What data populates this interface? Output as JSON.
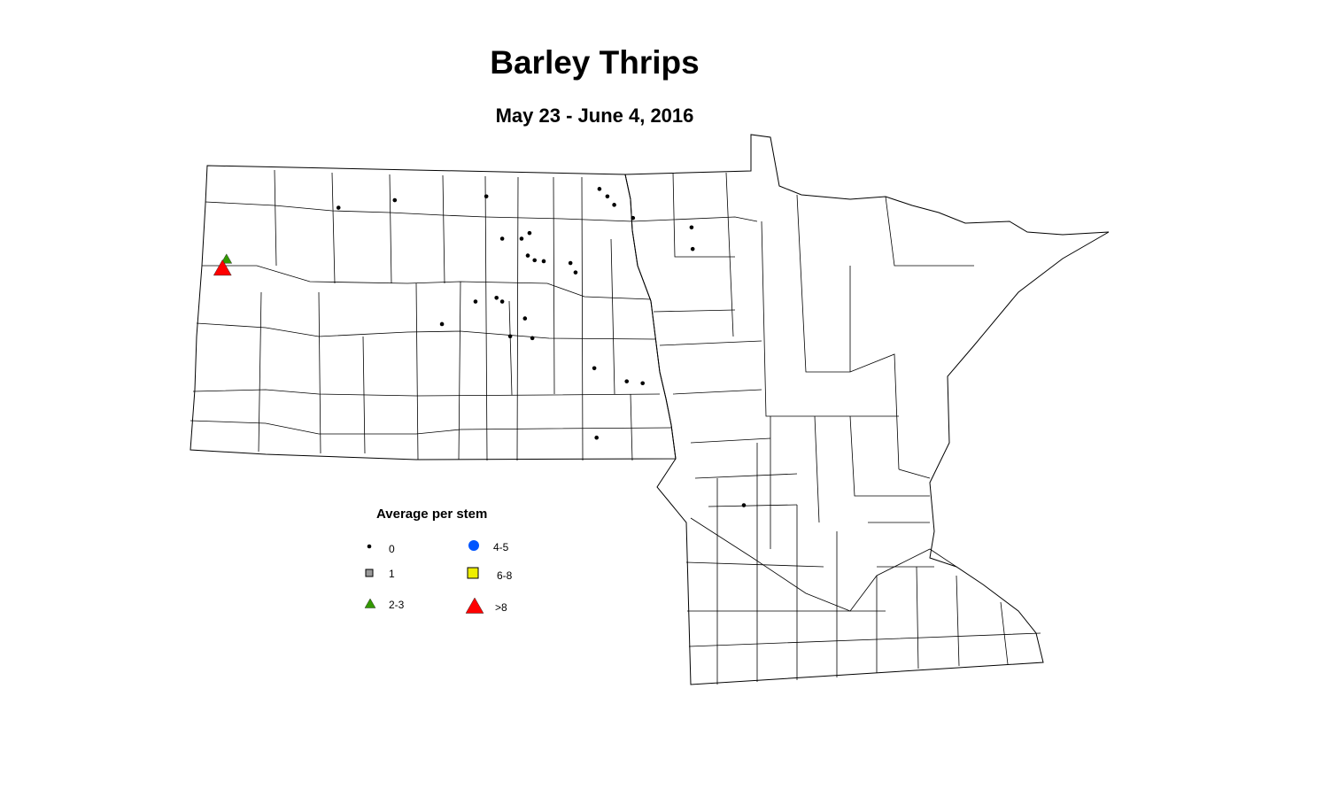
{
  "title": "Barley Thrips",
  "subtitle": "May 23 - June 4, 2016",
  "legend": {
    "title": "Average per stem",
    "classes": [
      {
        "label": "0",
        "symbol": "dot",
        "color": "#000000"
      },
      {
        "label": "1",
        "symbol": "square",
        "color": "#999999"
      },
      {
        "label": "2-3",
        "symbol": "triangle",
        "color": "#339900"
      },
      {
        "label": "4-5",
        "symbol": "circle",
        "color": "#0055ff"
      },
      {
        "label": "6-8",
        "symbol": "square",
        "color": "#eeee00"
      },
      {
        "label": ">8",
        "symbol": "triangle",
        "color": "#ff0000"
      }
    ]
  },
  "observations": [
    {
      "lon": -101.71,
      "lat": 48.58,
      "class": "0"
    },
    {
      "lon": -100.72,
      "lat": 48.66,
      "class": "0"
    },
    {
      "lon": -99.11,
      "lat": 48.7,
      "class": "0"
    },
    {
      "lon": -97.12,
      "lat": 48.78,
      "class": "0"
    },
    {
      "lon": -96.98,
      "lat": 48.7,
      "class": "0"
    },
    {
      "lon": -96.86,
      "lat": 48.61,
      "class": "0"
    },
    {
      "lon": -96.53,
      "lat": 48.47,
      "class": "0"
    },
    {
      "lon": -95.5,
      "lat": 48.37,
      "class": "0"
    },
    {
      "lon": -95.48,
      "lat": 48.14,
      "class": "0"
    },
    {
      "lon": -98.83,
      "lat": 48.25,
      "class": "0"
    },
    {
      "lon": -98.49,
      "lat": 48.25,
      "class": "0"
    },
    {
      "lon": -98.35,
      "lat": 48.31,
      "class": "0"
    },
    {
      "lon": -98.38,
      "lat": 48.07,
      "class": "0"
    },
    {
      "lon": -98.26,
      "lat": 48.02,
      "class": "0"
    },
    {
      "lon": -98.1,
      "lat": 48.01,
      "class": "0"
    },
    {
      "lon": -97.63,
      "lat": 47.99,
      "class": "0"
    },
    {
      "lon": -97.54,
      "lat": 47.89,
      "class": "0"
    },
    {
      "lon": -99.3,
      "lat": 47.58,
      "class": "0"
    },
    {
      "lon": -98.93,
      "lat": 47.62,
      "class": "0"
    },
    {
      "lon": -98.83,
      "lat": 47.58,
      "class": "0"
    },
    {
      "lon": -98.43,
      "lat": 47.4,
      "class": "0"
    },
    {
      "lon": -99.89,
      "lat": 47.34,
      "class": "0"
    },
    {
      "lon": -98.69,
      "lat": 47.21,
      "class": "0"
    },
    {
      "lon": -98.3,
      "lat": 47.19,
      "class": "0"
    },
    {
      "lon": -97.21,
      "lat": 46.87,
      "class": "0"
    },
    {
      "lon": -96.64,
      "lat": 46.73,
      "class": "0"
    },
    {
      "lon": -96.36,
      "lat": 46.71,
      "class": "0"
    },
    {
      "lon": -97.17,
      "lat": 46.13,
      "class": "0"
    },
    {
      "lon": -94.58,
      "lat": 45.41,
      "class": "0"
    },
    {
      "lon": -103.68,
      "lat": 48.03,
      "class": "2-3"
    },
    {
      "lon": -103.75,
      "lat": 47.93,
      "class": ">8"
    }
  ]
}
